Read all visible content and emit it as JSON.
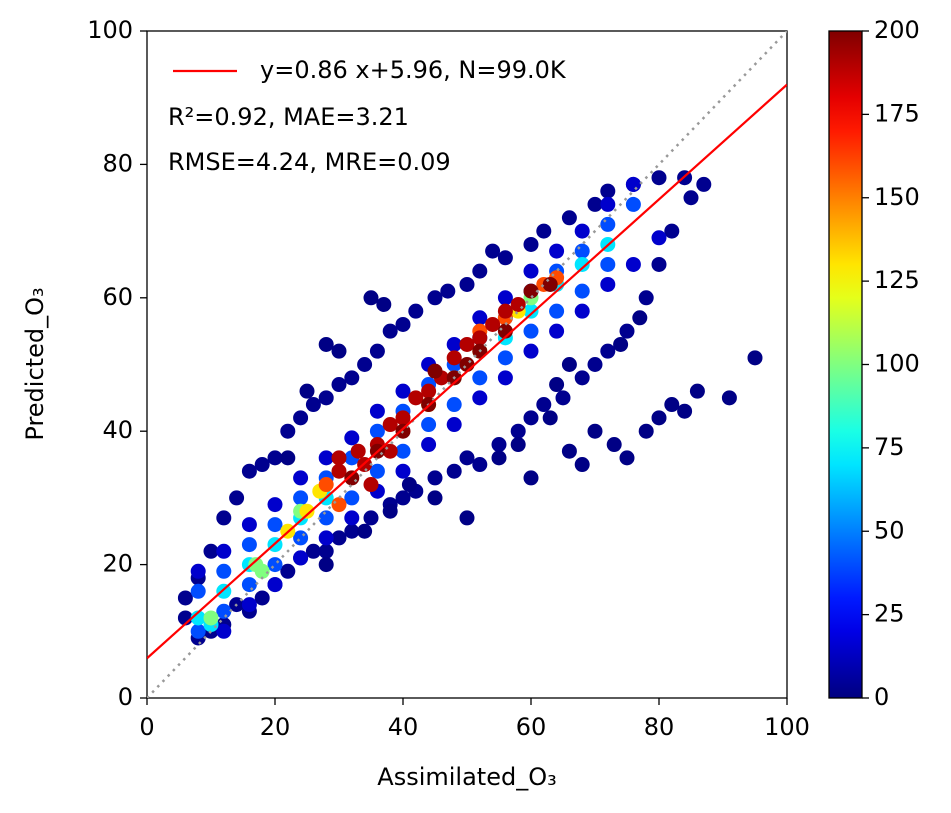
{
  "chart_data": {
    "type": "scatter",
    "xlabel": "Assimilated_O₃",
    "ylabel": "Predicted_O₃",
    "xlim": [
      0,
      100
    ],
    "ylim": [
      0,
      100
    ],
    "xticks": [
      0,
      20,
      40,
      60,
      80,
      100
    ],
    "yticks": [
      0,
      20,
      40,
      60,
      80,
      100
    ],
    "colormap": "jet",
    "clim": [
      0,
      200
    ],
    "cticks": [
      0,
      25,
      50,
      75,
      100,
      125,
      150,
      175,
      200
    ],
    "fit_line": {
      "name": "y=0.86 x+5.96, N=99.0K",
      "color": "#ff0000",
      "slope": 0.86,
      "intercept": 5.96
    },
    "identity_line": true,
    "stats": [
      "R²=0.92, MAE=3.21",
      "RMSE=4.24, MRE=0.09"
    ],
    "x": [
      6,
      8,
      10,
      12,
      14,
      16,
      18,
      20,
      22,
      24,
      26,
      28,
      30,
      32,
      35,
      38,
      40,
      42,
      45,
      48,
      50,
      52,
      55,
      58,
      60,
      62,
      65,
      68,
      70,
      72,
      75,
      78,
      80,
      82,
      85,
      87,
      84,
      80,
      76,
      72,
      70,
      66,
      62,
      60,
      56,
      54,
      52,
      50,
      47,
      45,
      42,
      40,
      38,
      36,
      34,
      32,
      30,
      28,
      26,
      24,
      22,
      20,
      18,
      16,
      14,
      12,
      10,
      8,
      6,
      95,
      91,
      86,
      84,
      82,
      80,
      78,
      75,
      73,
      70,
      68,
      66,
      63,
      60,
      58,
      55,
      77,
      74,
      66,
      64,
      35,
      37,
      28,
      25,
      30,
      22,
      38,
      45,
      41,
      34,
      28,
      50,
      8,
      12,
      16,
      20,
      24,
      28,
      32,
      36,
      40,
      44,
      48,
      52,
      56,
      60,
      64,
      68,
      72,
      76,
      12,
      16,
      20,
      24,
      28,
      32,
      36,
      40,
      44,
      48,
      52,
      56,
      60,
      64,
      68,
      72,
      76,
      80,
      8,
      12,
      16,
      20,
      24,
      28,
      32,
      36,
      40,
      44,
      48,
      52,
      56,
      60,
      64,
      68,
      72,
      76,
      8,
      12,
      16,
      20,
      24,
      28,
      32,
      36,
      40,
      44,
      48,
      52,
      56,
      60,
      64,
      68,
      72,
      8,
      10,
      12,
      16,
      20,
      24,
      28,
      56,
      60,
      64,
      68,
      72,
      10,
      17,
      18,
      24,
      48,
      60,
      22,
      25,
      27,
      44,
      52,
      58,
      28,
      30,
      52,
      56,
      62,
      64,
      30,
      30,
      33,
      34,
      36,
      38,
      40,
      42,
      44,
      46,
      48,
      50,
      52,
      54,
      56,
      58,
      35,
      38,
      32,
      36,
      40,
      44,
      48,
      52,
      56,
      60,
      63,
      45,
      50
    ],
    "y": [
      12,
      9,
      10,
      11,
      14,
      13,
      15,
      17,
      19,
      21,
      22,
      22,
      24,
      25,
      27,
      29,
      30,
      31,
      33,
      34,
      36,
      35,
      38,
      40,
      42,
      44,
      45,
      48,
      50,
      52,
      55,
      60,
      65,
      70,
      75,
      77,
      78,
      78,
      77,
      76,
      74,
      72,
      70,
      68,
      66,
      67,
      64,
      62,
      61,
      60,
      58,
      56,
      55,
      52,
      50,
      48,
      47,
      45,
      44,
      42,
      40,
      36,
      35,
      34,
      30,
      27,
      22,
      18,
      15,
      51,
      45,
      46,
      43,
      44,
      42,
      40,
      36,
      38,
      40,
      35,
      37,
      42,
      33,
      38,
      36,
      57,
      53,
      50,
      47,
      60,
      59,
      53,
      46,
      52,
      36,
      28,
      30,
      32,
      25,
      20,
      27,
      19,
      22,
      26,
      29,
      33,
      36,
      39,
      43,
      46,
      50,
      53,
      57,
      60,
      64,
      67,
      70,
      74,
      77,
      10,
      14,
      17,
      21,
      24,
      27,
      31,
      34,
      38,
      41,
      45,
      48,
      52,
      55,
      58,
      62,
      65,
      69,
      16,
      19,
      23,
      26,
      30,
      33,
      36,
      40,
      43,
      47,
      50,
      54,
      57,
      61,
      64,
      67,
      71,
      74,
      10,
      13,
      17,
      20,
      24,
      27,
      30,
      34,
      37,
      41,
      44,
      48,
      51,
      55,
      58,
      61,
      65,
      12,
      11,
      16,
      20,
      23,
      27,
      30,
      54,
      58,
      62,
      65,
      68,
      12,
      20,
      19,
      28,
      48,
      60,
      25,
      28,
      31,
      44,
      52,
      58,
      32,
      29,
      55,
      57,
      62,
      63,
      36,
      34,
      37,
      35,
      38,
      41,
      42,
      45,
      46,
      48,
      51,
      53,
      54,
      56,
      58,
      59,
      32,
      37,
      33,
      37,
      40,
      44,
      48,
      52,
      55,
      61,
      62,
      49,
      50
    ],
    "c": [
      3,
      3,
      3,
      3,
      3,
      3,
      3,
      3,
      3,
      3,
      3,
      3,
      3,
      3,
      3,
      3,
      3,
      3,
      3,
      3,
      3,
      3,
      3,
      3,
      3,
      3,
      3,
      3,
      3,
      3,
      3,
      3,
      3,
      3,
      3,
      3,
      3,
      3,
      3,
      3,
      3,
      3,
      3,
      3,
      3,
      3,
      3,
      3,
      3,
      3,
      3,
      3,
      3,
      3,
      3,
      3,
      3,
      3,
      3,
      3,
      3,
      3,
      3,
      3,
      3,
      3,
      3,
      3,
      3,
      1,
      1,
      1,
      1,
      1,
      1,
      1,
      1,
      1,
      1,
      1,
      1,
      1,
      1,
      1,
      1,
      1,
      1,
      1,
      1,
      1,
      1,
      1,
      1,
      1,
      1,
      1,
      1,
      1,
      1,
      1,
      1,
      15,
      15,
      15,
      15,
      15,
      15,
      15,
      15,
      15,
      15,
      15,
      15,
      15,
      15,
      15,
      15,
      15,
      15,
      15,
      15,
      15,
      15,
      15,
      15,
      15,
      15,
      15,
      15,
      15,
      15,
      15,
      15,
      15,
      15,
      15,
      15,
      40,
      40,
      40,
      40,
      40,
      40,
      40,
      40,
      40,
      40,
      40,
      40,
      40,
      40,
      40,
      40,
      40,
      40,
      40,
      40,
      40,
      40,
      40,
      40,
      40,
      40,
      40,
      40,
      40,
      40,
      40,
      40,
      40,
      40,
      40,
      70,
      70,
      70,
      70,
      70,
      70,
      70,
      70,
      70,
      70,
      70,
      70,
      100,
      100,
      100,
      100,
      100,
      100,
      130,
      130,
      130,
      130,
      130,
      130,
      160,
      160,
      160,
      160,
      160,
      160,
      190,
      190,
      190,
      190,
      190,
      190,
      190,
      190,
      190,
      190,
      190,
      190,
      190,
      190,
      190,
      190,
      190,
      190,
      200,
      200,
      200,
      200,
      200,
      200,
      200,
      200,
      200,
      200,
      200
    ]
  }
}
